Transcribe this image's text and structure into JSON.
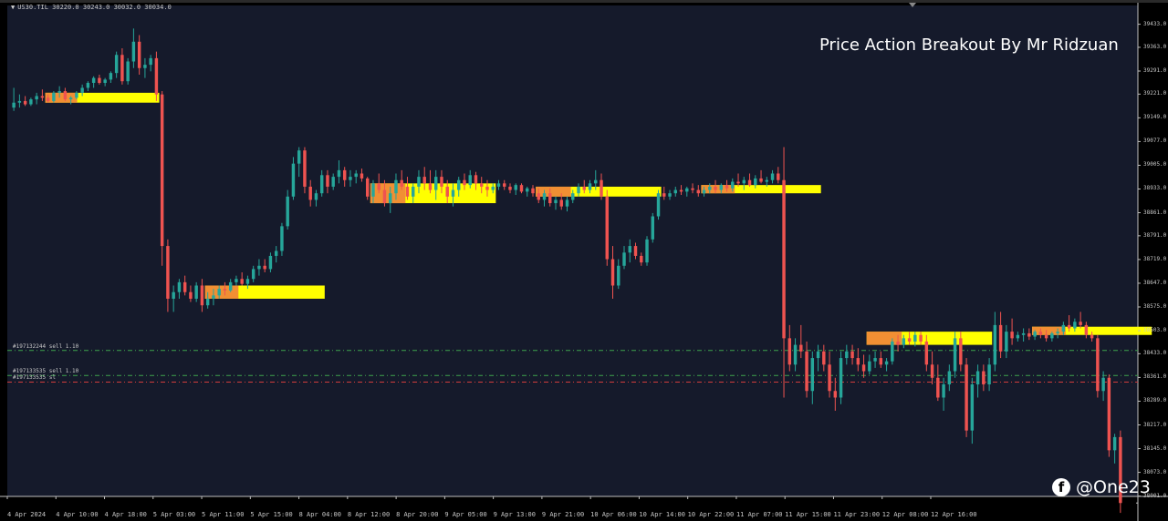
{
  "symbol": {
    "arrow": "▼",
    "text": "US30.TIL  30220.0 30243.0 30032.0 30034.0"
  },
  "overlay_title": "Price Action Breakout By Mr Ridzuan",
  "watermark": {
    "icon": "facebook-icon",
    "glyph": "f",
    "handle": "@One23"
  },
  "trade_lines": [
    {
      "label": "#197132244 sell 1.10",
      "price": 38443,
      "color": "#3fa34d",
      "style": "dash-dot"
    },
    {
      "label": "#197133535 sell 1.10",
      "price": 38367,
      "color": "#3fa34d",
      "style": "dash-dot"
    },
    {
      "label": "#197133535 sl",
      "price": 38347,
      "color": "#d23c3c",
      "style": "dash-dot"
    }
  ],
  "colors": {
    "background": "#000000",
    "plot_background": "#151a2b",
    "bull": "#26a69a",
    "bear": "#ef5350",
    "zone": "#ffff00",
    "zone_accent": "#ef7b3c"
  },
  "chart_data": {
    "type": "candlestick",
    "y_axis": {
      "min": 38000,
      "max": 39490,
      "tick_labels": [
        "39433.0",
        "39363.0",
        "39291.0",
        "39221.0",
        "39149.0",
        "39077.0",
        "39005.0",
        "38933.0",
        "38861.0",
        "38791.0",
        "38719.0",
        "38647.0",
        "38575.0",
        "38503.0",
        "38433.0",
        "38361.0",
        "38289.0",
        "38217.0",
        "38145.0",
        "38073.0",
        "38001.0"
      ]
    },
    "x_axis": {
      "tick_labels": [
        "4 Apr 2024",
        "4 Apr 10:00",
        "4 Apr 18:00",
        "5 Apr 03:00",
        "5 Apr 11:00",
        "5 Apr 15:00",
        "8 Apr 04:00",
        "8 Apr 12:00",
        "8 Apr 20:00",
        "9 Apr 05:00",
        "9 Apr 13:00",
        "9 Apr 21:00",
        "10 Apr 06:00",
        "10 Apr 14:00",
        "10 Apr 22:00",
        "11 Apr 07:00",
        "11 Apr 15:00",
        "11 Apr 23:00",
        "12 Apr 08:00",
        "12 Apr 16:00"
      ]
    },
    "zones": [
      {
        "from_bar": 6,
        "to_bar": 25,
        "low": 39195,
        "high": 39225
      },
      {
        "from_bar": 34,
        "to_bar": 54,
        "low": 38600,
        "high": 38640
      },
      {
        "from_bar": 63,
        "to_bar": 84,
        "low": 38890,
        "high": 38950
      },
      {
        "from_bar": 92,
        "to_bar": 113,
        "low": 38910,
        "high": 38940
      },
      {
        "from_bar": 121,
        "to_bar": 141,
        "low": 38920,
        "high": 38945
      },
      {
        "from_bar": 150,
        "to_bar": 171,
        "low": 38460,
        "high": 38500
      },
      {
        "from_bar": 179,
        "to_bar": 199,
        "low": 38490,
        "high": 38515
      }
    ],
    "candles": [
      [
        39180,
        39240,
        39170,
        39195
      ],
      [
        39195,
        39220,
        39180,
        39200
      ],
      [
        39200,
        39215,
        39185,
        39190
      ],
      [
        39190,
        39210,
        39185,
        39205
      ],
      [
        39205,
        39225,
        39190,
        39215
      ],
      [
        39215,
        39235,
        39200,
        39210
      ],
      [
        39210,
        39220,
        39195,
        39200
      ],
      [
        39200,
        39230,
        39195,
        39225
      ],
      [
        39225,
        39245,
        39210,
        39230
      ],
      [
        39230,
        39240,
        39200,
        39205
      ],
      [
        39205,
        39215,
        39190,
        39210
      ],
      [
        39210,
        39230,
        39205,
        39225
      ],
      [
        39225,
        39250,
        39215,
        39240
      ],
      [
        39240,
        39260,
        39230,
        39255
      ],
      [
        39255,
        39275,
        39240,
        39270
      ],
      [
        39270,
        39280,
        39250,
        39255
      ],
      [
        39255,
        39270,
        39245,
        39265
      ],
      [
        39265,
        39290,
        39255,
        39285
      ],
      [
        39285,
        39350,
        39270,
        39340
      ],
      [
        39340,
        39360,
        39250,
        39260
      ],
      [
        39260,
        39330,
        39250,
        39320
      ],
      [
        39320,
        39420,
        39300,
        39380
      ],
      [
        39380,
        39400,
        39280,
        39300
      ],
      [
        39300,
        39330,
        39270,
        39310
      ],
      [
        39310,
        39340,
        39290,
        39330
      ],
      [
        39330,
        39350,
        39200,
        39220
      ],
      [
        39220,
        39230,
        38700,
        38760
      ],
      [
        38760,
        38780,
        38560,
        38600
      ],
      [
        38600,
        38640,
        38560,
        38620
      ],
      [
        38620,
        38660,
        38600,
        38650
      ],
      [
        38650,
        38670,
        38610,
        38620
      ],
      [
        38620,
        38640,
        38590,
        38600
      ],
      [
        38600,
        38650,
        38590,
        38640
      ],
      [
        38640,
        38660,
        38560,
        38580
      ],
      [
        38580,
        38620,
        38570,
        38600
      ],
      [
        38600,
        38630,
        38580,
        38610
      ],
      [
        38610,
        38640,
        38600,
        38630
      ],
      [
        38630,
        38650,
        38610,
        38625
      ],
      [
        38625,
        38660,
        38620,
        38650
      ],
      [
        38650,
        38670,
        38640,
        38660
      ],
      [
        38660,
        38680,
        38640,
        38645
      ],
      [
        38645,
        38670,
        38630,
        38660
      ],
      [
        38660,
        38700,
        38650,
        38690
      ],
      [
        38690,
        38720,
        38670,
        38700
      ],
      [
        38700,
        38720,
        38680,
        38690
      ],
      [
        38690,
        38740,
        38680,
        38730
      ],
      [
        38730,
        38760,
        38710,
        38745
      ],
      [
        38745,
        38830,
        38730,
        38820
      ],
      [
        38820,
        38930,
        38810,
        38910
      ],
      [
        38910,
        39030,
        38900,
        39010
      ],
      [
        39010,
        39060,
        38970,
        39050
      ],
      [
        39050,
        39060,
        38920,
        38940
      ],
      [
        38940,
        38960,
        38880,
        38900
      ],
      [
        38900,
        38930,
        38880,
        38920
      ],
      [
        38920,
        38990,
        38910,
        38975
      ],
      [
        38975,
        38990,
        38920,
        38940
      ],
      [
        38940,
        38980,
        38930,
        38970
      ],
      [
        38970,
        39020,
        38950,
        38990
      ],
      [
        38990,
        39000,
        38940,
        38960
      ],
      [
        38960,
        38990,
        38940,
        38970
      ],
      [
        38970,
        38990,
        38950,
        38980
      ],
      [
        38980,
        38995,
        38955,
        38965
      ],
      [
        38965,
        38970,
        38900,
        38910
      ],
      [
        38910,
        38960,
        38890,
        38950
      ],
      [
        38950,
        38980,
        38920,
        38930
      ],
      [
        38930,
        38960,
        38880,
        38890
      ],
      [
        38890,
        38940,
        38860,
        38920
      ],
      [
        38920,
        38980,
        38900,
        38960
      ],
      [
        38960,
        38990,
        38930,
        38940
      ],
      [
        38940,
        38970,
        38900,
        38910
      ],
      [
        38910,
        38950,
        38890,
        38940
      ],
      [
        38940,
        38990,
        38920,
        38970
      ],
      [
        38970,
        39000,
        38930,
        38950
      ],
      [
        38950,
        38990,
        38920,
        38930
      ],
      [
        38930,
        38990,
        38900,
        38970
      ],
      [
        38970,
        38990,
        38920,
        38940
      ],
      [
        38940,
        38960,
        38890,
        38910
      ],
      [
        38910,
        38950,
        38880,
        38930
      ],
      [
        38930,
        38970,
        38910,
        38960
      ],
      [
        38960,
        38980,
        38930,
        38945
      ],
      [
        38945,
        38990,
        38935,
        38975
      ],
      [
        38975,
        38985,
        38930,
        38950
      ],
      [
        38950,
        38970,
        38920,
        38940
      ],
      [
        38940,
        38960,
        38910,
        38930
      ],
      [
        38930,
        38950,
        38920,
        38940
      ],
      [
        38940,
        38960,
        38930,
        38950
      ],
      [
        38950,
        38960,
        38930,
        38940
      ],
      [
        38940,
        38950,
        38920,
        38930
      ],
      [
        38930,
        38950,
        38915,
        38945
      ],
      [
        38945,
        38950,
        38920,
        38925
      ],
      [
        38925,
        38940,
        38910,
        38935
      ],
      [
        38935,
        38945,
        38910,
        38920
      ],
      [
        38920,
        38935,
        38890,
        38900
      ],
      [
        38900,
        38930,
        38880,
        38920
      ],
      [
        38920,
        38935,
        38880,
        38890
      ],
      [
        38890,
        38910,
        38870,
        38900
      ],
      [
        38900,
        38920,
        38870,
        38880
      ],
      [
        38880,
        38910,
        38865,
        38900
      ],
      [
        38900,
        38930,
        38890,
        38920
      ],
      [
        38920,
        38950,
        38910,
        38940
      ],
      [
        38940,
        38960,
        38920,
        38930
      ],
      [
        38930,
        38960,
        38920,
        38950
      ],
      [
        38950,
        38990,
        38930,
        38960
      ],
      [
        38960,
        38980,
        38900,
        38910
      ],
      [
        38910,
        38930,
        38700,
        38720
      ],
      [
        38720,
        38760,
        38600,
        38640
      ],
      [
        38640,
        38720,
        38630,
        38700
      ],
      [
        38700,
        38760,
        38690,
        38740
      ],
      [
        38740,
        38780,
        38710,
        38760
      ],
      [
        38760,
        38770,
        38720,
        38730
      ],
      [
        38730,
        38740,
        38700,
        38710
      ],
      [
        38710,
        38790,
        38700,
        38780
      ],
      [
        38780,
        38860,
        38770,
        38850
      ],
      [
        38850,
        38930,
        38840,
        38920
      ],
      [
        38920,
        38940,
        38900,
        38910
      ],
      [
        38910,
        38930,
        38900,
        38920
      ],
      [
        38920,
        38940,
        38910,
        38930
      ],
      [
        38930,
        38945,
        38915,
        38925
      ],
      [
        38925,
        38940,
        38910,
        38935
      ],
      [
        38935,
        38950,
        38920,
        38930
      ],
      [
        38930,
        38945,
        38910,
        38920
      ],
      [
        38920,
        38940,
        38910,
        38930
      ],
      [
        38930,
        38950,
        38920,
        38940
      ],
      [
        38940,
        38960,
        38920,
        38930
      ],
      [
        38930,
        38950,
        38920,
        38945
      ],
      [
        38945,
        38960,
        38925,
        38935
      ],
      [
        38935,
        38965,
        38925,
        38955
      ],
      [
        38955,
        38980,
        38940,
        38950
      ],
      [
        38950,
        38970,
        38930,
        38960
      ],
      [
        38960,
        38980,
        38940,
        38945
      ],
      [
        38945,
        38975,
        38935,
        38965
      ],
      [
        38965,
        38990,
        38950,
        38955
      ],
      [
        38955,
        38970,
        38940,
        38960
      ],
      [
        38960,
        38990,
        38950,
        38980
      ],
      [
        38980,
        39000,
        38950,
        38960
      ],
      [
        38960,
        39060,
        38300,
        38480
      ],
      [
        38480,
        38520,
        38380,
        38400
      ],
      [
        38400,
        38480,
        38380,
        38460
      ],
      [
        38460,
        38520,
        38420,
        38440
      ],
      [
        38440,
        38470,
        38300,
        38320
      ],
      [
        38320,
        38440,
        38280,
        38420
      ],
      [
        38420,
        38460,
        38380,
        38440
      ],
      [
        38440,
        38460,
        38380,
        38400
      ],
      [
        38400,
        38440,
        38300,
        38320
      ],
      [
        38320,
        38360,
        38260,
        38300
      ],
      [
        38300,
        38440,
        38280,
        38420
      ],
      [
        38420,
        38460,
        38400,
        38440
      ],
      [
        38440,
        38460,
        38400,
        38420
      ],
      [
        38420,
        38450,
        38380,
        38400
      ],
      [
        38400,
        38430,
        38360,
        38380
      ],
      [
        38380,
        38430,
        38370,
        38410
      ],
      [
        38410,
        38440,
        38390,
        38420
      ],
      [
        38420,
        38440,
        38390,
        38400
      ],
      [
        38400,
        38420,
        38380,
        38410
      ],
      [
        38410,
        38480,
        38400,
        38470
      ],
      [
        38470,
        38490,
        38440,
        38460
      ],
      [
        38460,
        38490,
        38450,
        38480
      ],
      [
        38480,
        38500,
        38460,
        38470
      ],
      [
        38470,
        38500,
        38455,
        38490
      ],
      [
        38490,
        38500,
        38460,
        38470
      ],
      [
        38470,
        38490,
        38380,
        38400
      ],
      [
        38400,
        38440,
        38340,
        38360
      ],
      [
        38360,
        38400,
        38290,
        38300
      ],
      [
        38300,
        38360,
        38260,
        38340
      ],
      [
        38340,
        38400,
        38320,
        38380
      ],
      [
        38380,
        38500,
        38360,
        38480
      ],
      [
        38480,
        38500,
        38380,
        38400
      ],
      [
        38400,
        38420,
        38180,
        38200
      ],
      [
        38200,
        38360,
        38160,
        38340
      ],
      [
        38340,
        38400,
        38300,
        38380
      ],
      [
        38380,
        38400,
        38320,
        38340
      ],
      [
        38340,
        38420,
        38320,
        38400
      ],
      [
        38400,
        38560,
        38380,
        38520
      ],
      [
        38520,
        38560,
        38420,
        38440
      ],
      [
        38440,
        38520,
        38420,
        38500
      ],
      [
        38500,
        38540,
        38460,
        38480
      ],
      [
        38480,
        38500,
        38470,
        38490
      ],
      [
        38490,
        38510,
        38470,
        38495
      ],
      [
        38495,
        38510,
        38475,
        38485
      ],
      [
        38485,
        38505,
        38475,
        38500
      ],
      [
        38500,
        38510,
        38480,
        38490
      ],
      [
        38490,
        38505,
        38470,
        38480
      ],
      [
        38480,
        38500,
        38470,
        38495
      ],
      [
        38495,
        38510,
        38480,
        38500
      ],
      [
        38500,
        38530,
        38490,
        38520
      ],
      [
        38520,
        38550,
        38500,
        38510
      ],
      [
        38510,
        38540,
        38500,
        38530
      ],
      [
        38530,
        38560,
        38510,
        38520
      ],
      [
        38520,
        38530,
        38480,
        38490
      ],
      [
        38490,
        38500,
        38470,
        38480
      ],
      [
        38480,
        38490,
        38300,
        38320
      ],
      [
        38320,
        38380,
        38290,
        38360
      ],
      [
        38360,
        38370,
        38120,
        38140
      ],
      [
        38140,
        38190,
        38100,
        38180
      ],
      [
        38180,
        38200,
        37950,
        37980
      ]
    ]
  }
}
